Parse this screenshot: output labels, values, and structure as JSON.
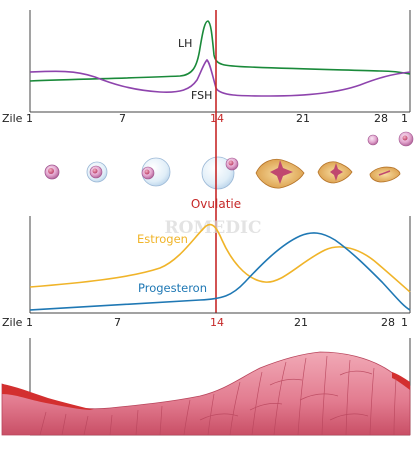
{
  "hormones": {
    "lh_label": "LH",
    "fsh_label": "FSH",
    "lh_color": "#1a8a3a",
    "fsh_color": "#8e44ad"
  },
  "ovary_hormones": {
    "estrogen_label": "Estrogen",
    "progesteron_label": "Progesteron",
    "estrogen_color": "#f0b429",
    "progesteron_color": "#1f78b4"
  },
  "axis": {
    "label": "Zile",
    "ticks": [
      "1",
      "7",
      "14",
      "21",
      "28",
      "1"
    ],
    "ovulation_day": "14"
  },
  "ovulation": {
    "label": "Ovulatie",
    "color": "#c62828"
  },
  "watermark": "ROMEDIC",
  "follicle_stages": [
    "primordial-follicle",
    "primary-follicle",
    "secondary-follicle",
    "graafian-follicle",
    "ovulating-follicle",
    "corpus-luteum",
    "corpus-luteum-regressing",
    "corpus-albicans"
  ]
}
